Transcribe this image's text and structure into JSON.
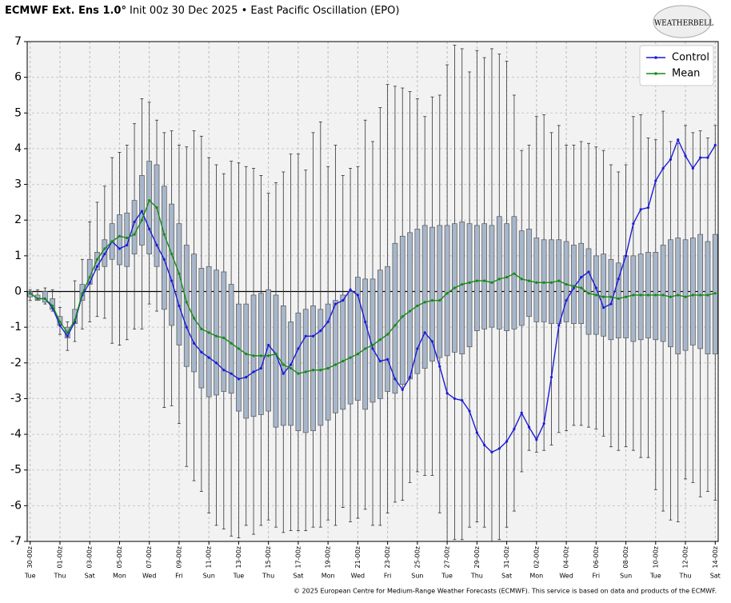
{
  "chart_data": {
    "type": "ensemble",
    "title_bold": "ECMWF Ext. Ens 1.0°",
    "title": "Init 00z 30 Dec 2025 • East Pacific Oscillation (EPO)",
    "logo": "WEATHERBELL",
    "footer": "© 2025 European Centre for Medium-Range Weather Forecasts (ECMWF). This service is based on data and products of the ECMWF.",
    "legend_position": "upper right",
    "grid": true,
    "xlim": [
      -0.2,
      46.2
    ],
    "ylim": [
      -7,
      7
    ],
    "yticks": [
      -7,
      -6,
      -5,
      -4,
      -3,
      -2,
      -1,
      0,
      1,
      2,
      3,
      4,
      5,
      6,
      7
    ],
    "xticks": [
      {
        "value": 0,
        "label": "30-00z"
      },
      {
        "value": 2,
        "label": "01-00z"
      },
      {
        "value": 4,
        "label": "03-00z"
      },
      {
        "value": 6,
        "label": "05-00z"
      },
      {
        "value": 8,
        "label": "07-00z"
      },
      {
        "value": 10,
        "label": "09-00z"
      },
      {
        "value": 12,
        "label": "11-00z"
      },
      {
        "value": 14,
        "label": "13-00z"
      },
      {
        "value": 16,
        "label": "15-00z"
      },
      {
        "value": 18,
        "label": "17-00z"
      },
      {
        "value": 20,
        "label": "19-00z"
      },
      {
        "value": 22,
        "label": "21-00z"
      },
      {
        "value": 24,
        "label": "23-00z"
      },
      {
        "value": 26,
        "label": "25-00z"
      },
      {
        "value": 28,
        "label": "27-00z"
      },
      {
        "value": 30,
        "label": "29-00z"
      },
      {
        "value": 32,
        "label": "31-00z"
      },
      {
        "value": 34,
        "label": "02-00z"
      },
      {
        "value": 36,
        "label": "04-00z"
      },
      {
        "value": 38,
        "label": "06-00z"
      },
      {
        "value": 40,
        "label": "08-00z"
      },
      {
        "value": 42,
        "label": "10-00z"
      },
      {
        "value": 44,
        "label": "12-00z"
      },
      {
        "value": 46,
        "label": "14-00z"
      }
    ],
    "xtick_days": [
      "Tue",
      "Thu",
      "Sat",
      "Mon",
      "Wed",
      "Fri",
      "Sun",
      "Tue",
      "Thu",
      "Sat",
      "Mon",
      "Wed",
      "Fri",
      "Sun",
      "Tue",
      "Thu",
      "Sat",
      "Mon",
      "Wed",
      "Fri",
      "Sun",
      "Tue",
      "Thu",
      "Sat"
    ],
    "x": [
      0,
      0.5,
      1,
      1.5,
      2,
      2.5,
      3,
      3.5,
      4,
      4.5,
      5,
      5.5,
      6,
      6.5,
      7,
      7.5,
      8,
      8.5,
      9,
      9.5,
      10,
      10.5,
      11,
      11.5,
      12,
      12.5,
      13,
      13.5,
      14,
      14.5,
      15,
      15.5,
      16,
      16.5,
      17,
      17.5,
      18,
      18.5,
      19,
      19.5,
      20,
      20.5,
      21,
      21.5,
      22,
      22.5,
      23,
      23.5,
      24,
      24.5,
      25,
      25.5,
      26,
      26.5,
      27,
      27.5,
      28,
      28.5,
      29,
      29.5,
      30,
      30.5,
      31,
      31.5,
      32,
      32.5,
      33,
      33.5,
      34,
      34.5,
      35,
      35.5,
      36,
      36.5,
      37,
      37.5,
      38,
      38.5,
      39,
      39.5,
      40,
      40.5,
      41,
      41.5,
      42,
      42.5,
      43,
      43.5,
      44,
      44.5,
      45,
      45.5,
      46
    ],
    "boxes": {
      "color": "#a7b6ca",
      "q3": [
        0,
        -0.1,
        0,
        -0.2,
        -0.7,
        -1.0,
        -0.5,
        0.2,
        0.9,
        1.1,
        1.45,
        1.9,
        2.15,
        2.2,
        2.55,
        3.25,
        3.65,
        3.55,
        2.95,
        2.45,
        1.9,
        1.3,
        1.05,
        0.65,
        0.7,
        0.6,
        0.55,
        0.2,
        -0.35,
        -0.35,
        -0.1,
        -0.05,
        0.05,
        -0.1,
        -0.4,
        -0.85,
        -0.6,
        -0.5,
        -0.4,
        -0.5,
        -0.35,
        -0.25,
        -0.1,
        0.0,
        0.4,
        0.35,
        0.35,
        0.6,
        0.7,
        1.35,
        1.55,
        1.65,
        1.75,
        1.85,
        1.8,
        1.85,
        1.85,
        1.9,
        1.95,
        1.9,
        1.85,
        1.9,
        1.85,
        2.1,
        1.9,
        2.1,
        1.7,
        1.75,
        1.5,
        1.45,
        1.45,
        1.45,
        1.4,
        1.3,
        1.35,
        1.2,
        1.0,
        1.05,
        0.9,
        0.8,
        1.0,
        1.0,
        1.05,
        1.1,
        1.1,
        1.3,
        1.45,
        1.5,
        1.45,
        1.5,
        1.6,
        1.4,
        1.6
      ],
      "q1": [
        -0.15,
        -0.25,
        -0.3,
        -0.5,
        -0.95,
        -1.3,
        -0.9,
        -0.25,
        0.2,
        0.6,
        0.7,
        0.9,
        0.75,
        0.7,
        1.05,
        1.3,
        1.05,
        0.7,
        -0.5,
        -0.95,
        -1.5,
        -2.1,
        -2.25,
        -2.7,
        -2.95,
        -2.9,
        -2.8,
        -2.85,
        -3.35,
        -3.55,
        -3.5,
        -3.45,
        -3.35,
        -3.8,
        -3.75,
        -3.75,
        -3.9,
        -3.95,
        -3.9,
        -3.75,
        -3.6,
        -3.4,
        -3.3,
        -3.15,
        -3.05,
        -3.3,
        -3.1,
        -3.0,
        -2.8,
        -2.85,
        -2.6,
        -2.45,
        -2.3,
        -2.15,
        -1.95,
        -1.85,
        -1.8,
        -1.7,
        -1.75,
        -1.55,
        -1.1,
        -1.05,
        -1.0,
        -1.05,
        -1.1,
        -1.05,
        -0.95,
        -0.7,
        -0.85,
        -0.85,
        -0.9,
        -0.9,
        -0.85,
        -0.9,
        -0.9,
        -1.2,
        -1.2,
        -1.25,
        -1.35,
        -1.3,
        -1.3,
        -1.4,
        -1.35,
        -1.3,
        -1.35,
        -1.4,
        -1.55,
        -1.75,
        -1.65,
        -1.5,
        -1.6,
        -1.75,
        -1.75
      ],
      "max": [
        0.05,
        0.05,
        0.1,
        0.05,
        -0.45,
        -0.85,
        0.3,
        0.9,
        1.95,
        2.5,
        2.95,
        3.75,
        3.9,
        4.1,
        4.7,
        5.4,
        5.3,
        4.8,
        4.45,
        4.5,
        4.1,
        4.05,
        4.5,
        4.35,
        3.75,
        3.55,
        3.3,
        3.65,
        3.6,
        3.5,
        3.45,
        3.25,
        2.75,
        3.05,
        3.35,
        3.85,
        3.85,
        3.4,
        4.45,
        4.75,
        3.5,
        4.1,
        3.25,
        3.45,
        3.5,
        4.8,
        4.2,
        5.15,
        5.8,
        5.75,
        5.7,
        5.6,
        5.4,
        4.9,
        5.45,
        5.5,
        6.35,
        6.9,
        6.8,
        6.15,
        6.75,
        6.55,
        6.8,
        6.65,
        6.45,
        5.5,
        3.95,
        4.1,
        4.9,
        4.95,
        4.45,
        4.65,
        4.1,
        4.1,
        4.2,
        4.15,
        4.05,
        3.95,
        3.55,
        3.35,
        3.55,
        4.9,
        4.95,
        4.3,
        4.25,
        5.05,
        4.2,
        4.15,
        4.65,
        4.45,
        4.5,
        4.3,
        4.65
      ],
      "min": [
        -0.25,
        -0.25,
        -0.35,
        -0.55,
        -1.2,
        -1.65,
        -1.4,
        -1.05,
        -0.85,
        -0.7,
        -0.75,
        -1.45,
        -1.5,
        -1.35,
        -1.05,
        -1.05,
        -0.35,
        -0.55,
        -3.25,
        -3.2,
        -3.7,
        -4.9,
        -5.3,
        -5.6,
        -6.2,
        -6.55,
        -6.65,
        -6.85,
        -6.9,
        -6.55,
        -6.8,
        -6.55,
        -6.4,
        -6.6,
        -6.75,
        -6.7,
        -6.7,
        -6.7,
        -6.6,
        -6.6,
        -6.4,
        -6.55,
        -6.05,
        -6.45,
        -6.35,
        -6.1,
        -6.55,
        -6.55,
        -6.2,
        -5.9,
        -5.85,
        -5.35,
        -5.05,
        -5.15,
        -5.15,
        -6.2,
        -7.0,
        -6.95,
        -6.95,
        -6.6,
        -6.45,
        -6.6,
        -7.0,
        -6.95,
        -6.6,
        -6.15,
        -5.05,
        -4.45,
        -4.5,
        -4.45,
        -4.3,
        -3.95,
        -3.9,
        -3.75,
        -3.75,
        -3.8,
        -3.85,
        -4.05,
        -4.35,
        -4.45,
        -4.35,
        -4.45,
        -4.65,
        -4.65,
        -5.55,
        -6.15,
        -6.4,
        -6.45,
        -5.25,
        -5.35,
        -5.75,
        -5.6,
        -5.85
      ]
    },
    "series": [
      {
        "name": "Control",
        "color": "#1a1adc",
        "values": [
          -0.05,
          -0.2,
          -0.2,
          -0.45,
          -0.95,
          -1.25,
          -0.85,
          -0.1,
          0.25,
          0.7,
          1.05,
          1.4,
          1.2,
          1.3,
          1.95,
          2.25,
          1.75,
          1.3,
          0.9,
          0.3,
          -0.4,
          -1.0,
          -1.45,
          -1.7,
          -1.85,
          -2.0,
          -2.2,
          -2.3,
          -2.45,
          -2.4,
          -2.25,
          -2.15,
          -1.5,
          -1.75,
          -2.3,
          -2.05,
          -1.6,
          -1.25,
          -1.25,
          -1.1,
          -0.85,
          -0.35,
          -0.25,
          0.05,
          -0.1,
          -0.85,
          -1.6,
          -1.95,
          -1.9,
          -2.45,
          -2.75,
          -2.4,
          -1.6,
          -1.15,
          -1.4,
          -2.1,
          -2.85,
          -3.0,
          -3.05,
          -3.35,
          -3.95,
          -4.3,
          -4.5,
          -4.4,
          -4.2,
          -3.85,
          -3.4,
          -3.8,
          -4.15,
          -3.7,
          -2.4,
          -0.95,
          -0.25,
          0.1,
          0.4,
          0.55,
          0.1,
          -0.45,
          -0.35,
          0.35,
          1.0,
          1.9,
          2.3,
          2.35,
          3.1,
          3.45,
          3.7,
          4.25,
          3.8,
          3.45,
          3.75,
          3.75,
          4.1
        ]
      },
      {
        "name": "Mean",
        "color": "#178a17",
        "values": [
          -0.05,
          -0.2,
          -0.2,
          -0.4,
          -0.85,
          -1.15,
          -0.8,
          -0.05,
          0.4,
          0.9,
          1.2,
          1.4,
          1.55,
          1.5,
          1.6,
          2.0,
          2.55,
          2.35,
          1.6,
          1.05,
          0.5,
          -0.3,
          -0.75,
          -1.05,
          -1.15,
          -1.25,
          -1.3,
          -1.45,
          -1.6,
          -1.75,
          -1.8,
          -1.8,
          -1.8,
          -1.75,
          -2.05,
          -2.15,
          -2.3,
          -2.25,
          -2.2,
          -2.2,
          -2.15,
          -2.05,
          -1.95,
          -1.85,
          -1.75,
          -1.6,
          -1.5,
          -1.35,
          -1.2,
          -0.95,
          -0.7,
          -0.55,
          -0.4,
          -0.3,
          -0.25,
          -0.25,
          -0.05,
          0.1,
          0.2,
          0.25,
          0.3,
          0.3,
          0.25,
          0.35,
          0.4,
          0.5,
          0.35,
          0.3,
          0.25,
          0.25,
          0.25,
          0.3,
          0.2,
          0.15,
          0.1,
          -0.05,
          -0.1,
          -0.15,
          -0.15,
          -0.2,
          -0.15,
          -0.1,
          -0.1,
          -0.1,
          -0.1,
          -0.1,
          -0.15,
          -0.1,
          -0.15,
          -0.1,
          -0.1,
          -0.1,
          -0.05
        ]
      }
    ]
  }
}
